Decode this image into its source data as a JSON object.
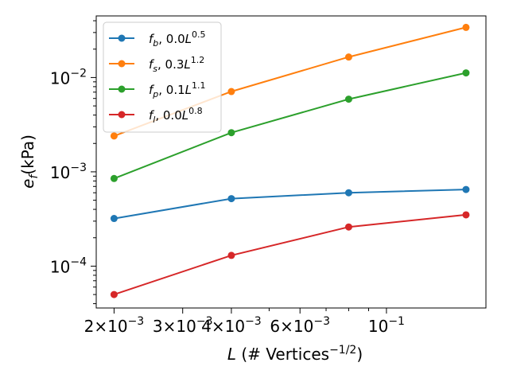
{
  "chart_data": {
    "type": "line",
    "x_scale": "log",
    "y_scale": "log",
    "x": [
      0.002,
      0.004,
      0.008,
      0.016
    ],
    "xlim": [
      0.0018,
      0.018
    ],
    "ylim": [
      3.6e-05,
      0.045
    ],
    "ylabel": {
      "base": "e",
      "sub": "f",
      "unit": "(kPa)"
    },
    "xlabel": {
      "pre": "L",
      "mid": " (# Vertices",
      "sup": "−1/2",
      "post": ")"
    },
    "x_ticks": [
      {
        "value": 0.002,
        "mant": "2×10",
        "exp": "−3"
      },
      {
        "value": 0.003,
        "mant": "3×10",
        "exp": "−3"
      },
      {
        "value": 0.004,
        "mant": "4×10",
        "exp": "−3"
      },
      {
        "value": 0.006,
        "mant": "6×10",
        "exp": "−3"
      },
      {
        "value": 0.01,
        "mant": "10",
        "exp": "−1"
      }
    ],
    "y_ticks": [
      {
        "value": 0.0001,
        "mant": "10",
        "exp": "−4"
      },
      {
        "value": 0.001,
        "mant": "10",
        "exp": "−3"
      },
      {
        "value": 0.01,
        "mant": "10",
        "exp": "−2"
      }
    ],
    "legend_position": "top-left",
    "series": [
      {
        "var": "f",
        "sub": "b",
        "coef": "0.0",
        "exp": "0.5",
        "color": "#1f77b4",
        "values": [
          0.00032,
          0.00052,
          0.0006,
          0.00065
        ]
      },
      {
        "var": "f",
        "sub": "s",
        "coef": "0.3",
        "exp": "1.2",
        "color": "#ff7f0e",
        "values": [
          0.0024,
          0.0071,
          0.0165,
          0.034
        ]
      },
      {
        "var": "f",
        "sub": "p",
        "coef": "0.1",
        "exp": "1.1",
        "color": "#2ca02c",
        "values": [
          0.00085,
          0.0026,
          0.0059,
          0.0112
        ]
      },
      {
        "var": "f",
        "sub": "l",
        "coef": "0.0",
        "exp": "0.8",
        "color": "#d62728",
        "values": [
          5e-05,
          0.00013,
          0.00026,
          0.00035
        ]
      }
    ]
  }
}
